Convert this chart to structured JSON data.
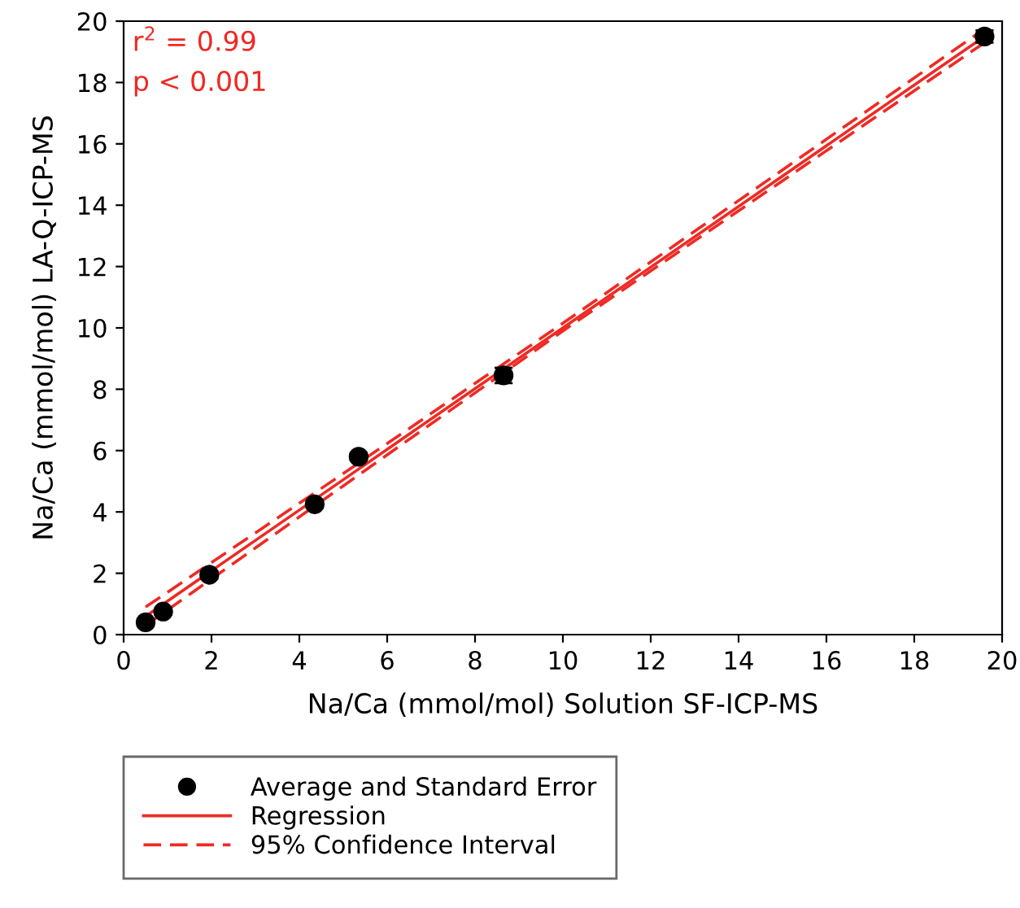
{
  "chart_data": {
    "type": "scatter",
    "xlabel": "Na/Ca (mmol/mol) Solution SF-ICP-MS",
    "ylabel": "Na/Ca (mmol/mol) LA-Q-ICP-MS",
    "xlim": [
      0,
      20
    ],
    "xticks": [
      0,
      2,
      4,
      6,
      8,
      10,
      12,
      14,
      16,
      18,
      20
    ],
    "ylim": [
      0,
      20
    ],
    "yticks": [
      0,
      2,
      4,
      6,
      8,
      10,
      12,
      14,
      16,
      18,
      20
    ],
    "grid": false,
    "legend": "bottom",
    "annotations": [
      "r$^{2}$ = 0.99",
      "p < 0.001"
    ],
    "series": [
      {
        "name": "Regression",
        "type": "line",
        "line_style": "solid",
        "marker": "none",
        "color": "#ee2a24",
        "x": [
          0.5,
          5,
          10,
          19.6
        ],
        "values": [
          0.6,
          5.05,
          10.0,
          19.5
        ]
      },
      {
        "name": "95% Confidence Interval",
        "type": "line",
        "line_style": "dashed",
        "marker": "none",
        "color": "#ee2a24",
        "x": [
          0.5,
          5,
          10,
          19.6
        ],
        "values": [
          0.9,
          5.25,
          10.15,
          19.75
        ]
      },
      {
        "type": "line",
        "line_style": "dashed",
        "marker": "none",
        "color": "#ee2a24",
        "x": [
          0.5,
          5,
          10,
          19.6
        ],
        "values": [
          0.3,
          4.85,
          9.9,
          19.3
        ]
      },
      {
        "name": "Average and Standard Error",
        "marker": "circle",
        "color": "#000000",
        "x": [
          0.5,
          0.9,
          1.95,
          4.35,
          5.35,
          8.65,
          19.6
        ],
        "values": [
          0.4,
          0.75,
          1.95,
          4.25,
          5.8,
          8.45,
          19.5
        ],
        "errors": [
          0.1,
          0.1,
          0.12,
          0.12,
          0.12,
          0.25,
          0.2
        ]
      }
    ]
  }
}
